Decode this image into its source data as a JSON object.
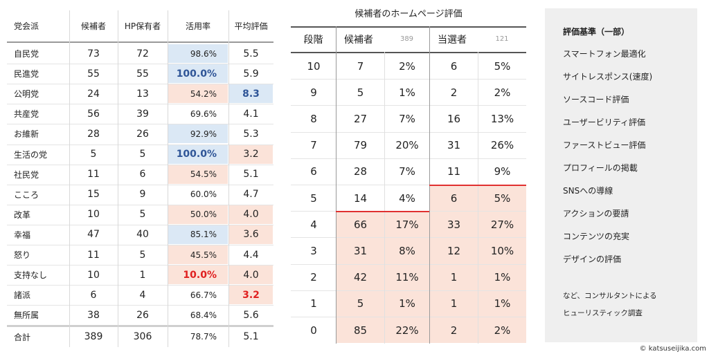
{
  "left_table": {
    "headers": [
      "党会派",
      "候補者",
      "HP保有者",
      "活用率",
      "平均評価"
    ],
    "rows": [
      [
        "自民党",
        "73",
        "72",
        "98.6%",
        "5.5"
      ],
      [
        "民進党",
        "55",
        "55",
        "100.0%",
        "5.9"
      ],
      [
        "公明党",
        "24",
        "13",
        "54.2%",
        "8.3"
      ],
      [
        "共産党",
        "56",
        "39",
        "69.6%",
        "4.1"
      ],
      [
        "お維新",
        "28",
        "26",
        "92.9%",
        "5.3"
      ],
      [
        "生活の党",
        "5",
        "5",
        "100.0%",
        "3.2"
      ],
      [
        "社民党",
        "11",
        "6",
        "54.5%",
        "5.1"
      ],
      [
        "こころ",
        "15",
        "9",
        "60.0%",
        "4.7"
      ],
      [
        "改革",
        "10",
        "5",
        "50.0%",
        "4.0"
      ],
      [
        "幸福",
        "47",
        "40",
        "85.1%",
        "3.6"
      ],
      [
        "怒り",
        "11",
        "5",
        "45.5%",
        "4.4"
      ],
      [
        "支持なし",
        "10",
        "1",
        "10.0%",
        "4.0"
      ],
      [
        "諸派",
        "6",
        "4",
        "66.7%",
        "3.2"
      ],
      [
        "無所属",
        "38",
        "26",
        "68.4%",
        "5.6"
      ]
    ],
    "total": [
      "合計",
      "389",
      "306",
      "78.7%",
      "5.1"
    ]
  },
  "right_table": {
    "title": "候補者のホームページ評価",
    "headers": [
      "段階",
      "候補者",
      "389",
      "当選者",
      "121"
    ],
    "rows": [
      [
        "10",
        "7",
        "2%",
        "6",
        "5%"
      ],
      [
        "9",
        "5",
        "1%",
        "2",
        "2%"
      ],
      [
        "8",
        "27",
        "7%",
        "16",
        "13%"
      ],
      [
        "7",
        "79",
        "20%",
        "31",
        "26%"
      ],
      [
        "6",
        "28",
        "7%",
        "11",
        "9%"
      ],
      [
        "5",
        "14",
        "4%",
        "6",
        "5%"
      ],
      [
        "4",
        "66",
        "17%",
        "33",
        "27%"
      ],
      [
        "3",
        "31",
        "8%",
        "12",
        "10%"
      ],
      [
        "2",
        "42",
        "11%",
        "1",
        "1%"
      ],
      [
        "1",
        "5",
        "1%",
        "1",
        "1%"
      ],
      [
        "0",
        "85",
        "22%",
        "2",
        "2%"
      ]
    ]
  },
  "criteria": {
    "title": "評価基準（一部）",
    "items": [
      "スマートフォン最適化",
      "サイトレスポンス(速度)",
      "ソースコード評価",
      "ユーザービリティ評価",
      "ファーストビュー評価",
      "プロフィールの掲載",
      "SNSへの導線",
      "アクションの要請",
      "コンテンツの充実",
      "デザインの評価"
    ],
    "note": [
      "など、コンサルタントによる",
      "ヒューリスティック調査"
    ]
  },
  "copyright": "© katsuseijika.com"
}
